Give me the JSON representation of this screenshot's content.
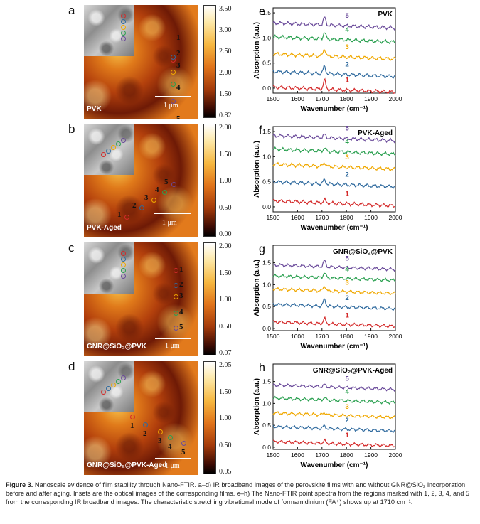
{
  "figure": {
    "caption_label": "Figure 3.",
    "caption_text": "Nanoscale evidence of film stability through Nano-FTIR. a–d) IR broadband images of the perovskite films with and without GNR@SiO₂ incorporation before and after aging. Insets are the optical images of the corresponding films. e–h) The Nano-FTIR point spectra from the regions marked with 1, 2, 3, 4, and 5 from the corresponding IR broadband images. The characteristic stretching vibrational mode of formamidinium (FA⁺) shows up at 1710 cm⁻¹."
  },
  "colors": {
    "p1": "#d42a2a",
    "p2": "#2f6a9e",
    "p3": "#f0a800",
    "p4": "#2aa050",
    "p5": "#6a4a9a"
  },
  "panels": [
    {
      "img_label": "a",
      "spec_label": "e",
      "sample": "PVK",
      "scale": "1 μm",
      "cbar_ticks": [
        "3.50",
        "3.00",
        "2.50",
        "2.00",
        "1.50",
        "0.82"
      ],
      "points": [
        "1",
        "2",
        "3",
        "4",
        "5"
      ],
      "spec_title": "PVK"
    },
    {
      "img_label": "b",
      "spec_label": "f",
      "sample": "PVK-Aged",
      "scale": "1 μm",
      "cbar_ticks": [
        "2.00",
        "1.50",
        "1.00",
        "0.50",
        "0.00"
      ],
      "points": [
        "1",
        "2",
        "3",
        "4",
        "5"
      ],
      "spec_title": "PVK-Aged"
    },
    {
      "img_label": "c",
      "spec_label": "g",
      "sample": "GNR@SiO₂@PVK",
      "scale": "1 μm",
      "cbar_ticks": [
        "2.00",
        "1.50",
        "1.00",
        "0.50",
        "0.07"
      ],
      "points": [
        "1",
        "2",
        "3",
        "4",
        "5"
      ],
      "spec_title": "GNR@SiO₂@PVK"
    },
    {
      "img_label": "d",
      "spec_label": "h",
      "sample": "GNR@SiO₂@PVK-Aged",
      "scale": "1 μm",
      "cbar_ticks": [
        "2.05",
        "1.50",
        "1.00",
        "0.50",
        "0.05"
      ],
      "points": [
        "1",
        "2",
        "3",
        "4",
        "5"
      ],
      "spec_title": "GNR@SiO₂@PVK-Aged"
    }
  ],
  "chart_data": [
    {
      "type": "line",
      "title": "PVK",
      "xlabel": "Wavenumber (cm⁻¹)",
      "ylabel": "Absorption (a.u.)",
      "xlim": [
        1500,
        2000
      ],
      "ylim": [
        -0.1,
        1.6
      ],
      "xticks": [
        "1500",
        "1600",
        "1700",
        "1800",
        "1900",
        "2000"
      ],
      "yticks": [
        "0.0",
        "0.5",
        "1.0",
        "1.5"
      ],
      "series": [
        {
          "name": "1",
          "offset": 0.02,
          "peak": 0.18
        },
        {
          "name": "2",
          "offset": 0.33,
          "peak": 0.15
        },
        {
          "name": "3",
          "offset": 0.68,
          "peak": 0.15
        },
        {
          "name": "4",
          "offset": 1.02,
          "peak": 0.14
        },
        {
          "name": "5",
          "offset": 1.3,
          "peak": 0.15
        }
      ]
    },
    {
      "type": "line",
      "title": "PVK-Aged",
      "xlabel": "Wavenumber (cm⁻¹)",
      "ylabel": "Absorption (a.u.)",
      "xlim": [
        1500,
        2000
      ],
      "ylim": [
        -0.1,
        1.6
      ],
      "xticks": [
        "1500",
        "1600",
        "1700",
        "1800",
        "1900",
        "2000"
      ],
      "yticks": [
        "0.0",
        "0.5",
        "1.0",
        "1.5"
      ],
      "series": [
        {
          "name": "1",
          "offset": 0.12,
          "peak": 0.06
        },
        {
          "name": "2",
          "offset": 0.5,
          "peak": 0.08
        },
        {
          "name": "3",
          "offset": 0.85,
          "peak": 0.08
        },
        {
          "name": "4",
          "offset": 1.15,
          "peak": 0.07
        },
        {
          "name": "5",
          "offset": 1.42,
          "peak": 0.06
        }
      ]
    },
    {
      "type": "line",
      "title": "GNR@SiO₂@PVK",
      "xlabel": "Wavenumber (cm⁻¹)",
      "ylabel": "Absorption (a.u.)",
      "xlim": [
        1500,
        2000
      ],
      "ylim": [
        -0.05,
        1.9
      ],
      "xticks": [
        "1500",
        "1600",
        "1700",
        "1800",
        "1900",
        "2000"
      ],
      "yticks": [
        "0.0",
        "0.5",
        "1.0",
        "1.5"
      ],
      "series": [
        {
          "name": "1",
          "offset": 0.15,
          "peak": 0.12
        },
        {
          "name": "2",
          "offset": 0.55,
          "peak": 0.16
        },
        {
          "name": "3",
          "offset": 0.9,
          "peak": 0.12
        },
        {
          "name": "4",
          "offset": 1.2,
          "peak": 0.12
        },
        {
          "name": "5",
          "offset": 1.45,
          "peak": 0.14
        }
      ]
    },
    {
      "type": "line",
      "title": "GNR@SiO₂@PVK-Aged",
      "xlabel": "Wavenumber (cm⁻¹)",
      "ylabel": "Absorption (a.u.)",
      "xlim": [
        1500,
        2000
      ],
      "ylim": [
        -0.05,
        1.9
      ],
      "xticks": [
        "1500",
        "1600",
        "1700",
        "1800",
        "1900",
        "2000"
      ],
      "yticks": [
        "0.0",
        "0.5",
        "1.0",
        "1.5"
      ],
      "series": [
        {
          "name": "1",
          "offset": 0.13,
          "peak": 0.06
        },
        {
          "name": "2",
          "offset": 0.47,
          "peak": 0.06
        },
        {
          "name": "3",
          "offset": 0.78,
          "peak": 0.06
        },
        {
          "name": "4",
          "offset": 1.12,
          "peak": 0.06
        },
        {
          "name": "5",
          "offset": 1.42,
          "peak": 0.05
        }
      ]
    }
  ]
}
